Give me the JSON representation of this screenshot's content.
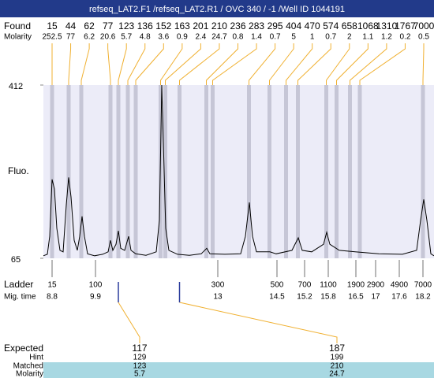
{
  "chart_data": {
    "type": "line",
    "title": "refseq_LAT2.F1 /refseq_LAT2.R1 / OVC 340 / -1 /Well ID 1044191",
    "y_label": "Fluo.",
    "xlim": [
      8.58,
      18.48
    ],
    "ylim": [
      65,
      412
    ],
    "yticks": [
      65,
      412
    ],
    "x": [
      8.58,
      8.68,
      8.74,
      8.8,
      8.86,
      8.92,
      9.0,
      9.08,
      9.16,
      9.22,
      9.28,
      9.36,
      9.44,
      9.5,
      9.56,
      9.62,
      9.7,
      9.88,
      10.08,
      10.22,
      10.28,
      10.34,
      10.42,
      10.48,
      10.54,
      10.64,
      10.74,
      10.8,
      10.92,
      11.18,
      11.44,
      11.52,
      11.58,
      11.62,
      11.68,
      11.76,
      11.98,
      12.28,
      12.58,
      12.72,
      12.8,
      13.18,
      13.58,
      13.7,
      13.8,
      13.88,
      13.98,
      14.32,
      14.48,
      14.88,
      15.04,
      15.14,
      15.38,
      15.68,
      15.76,
      15.84,
      16.08,
      16.48,
      17.08,
      17.68,
      18.04,
      18.14,
      18.22,
      18.3,
      18.4,
      18.48
    ],
    "series": [
      {
        "color": "#000000",
        "values": [
          70,
          73,
          109,
          223,
          204,
          125,
          81,
          78,
          172,
          227,
          188,
          101,
          81,
          109,
          149,
          109,
          74,
          70,
          73,
          78,
          101,
          81,
          93,
          120,
          85,
          81,
          109,
          81,
          74,
          71,
          78,
          141,
          412,
          298,
          125,
          81,
          73,
          71,
          74,
          85,
          74,
          73,
          74,
          109,
          177,
          109,
          78,
          78,
          74,
          81,
          106,
          81,
          78,
          93,
          117,
          93,
          81,
          78,
          74,
          73,
          81,
          141,
          183,
          141,
          74,
          70
        ]
      }
    ],
    "found": {
      "label": "Found",
      "molarity_label": "Molarity",
      "sizes": [
        15,
        44,
        62,
        77,
        123,
        136,
        152,
        163,
        201,
        210,
        236,
        283,
        295,
        404,
        470,
        574,
        658,
        1068,
        1310,
        1767,
        7000
      ],
      "molarities": [
        252.5,
        77,
        6.2,
        20.6,
        5.7,
        4.8,
        3.6,
        0.9,
        2.4,
        24.7,
        0.8,
        1.4,
        0.7,
        5,
        1,
        0.7,
        2,
        1.1,
        1.2,
        0.2,
        0.5
      ],
      "times": [
        8.8,
        9.22,
        9.54,
        10.28,
        10.48,
        10.72,
        10.92,
        11.55,
        11.67,
        12.03,
        12.71,
        12.87,
        13.79,
        14.31,
        14.73,
        15.03,
        15.75,
        16.01,
        16.35,
        16.6,
        18.2
      ]
    },
    "ladder": {
      "label": "Ladder",
      "time_label": "Mig. time",
      "sizes": [
        15,
        100,
        300,
        500,
        700,
        1100,
        1900,
        2900,
        4900,
        7000
      ],
      "times": [
        8.8,
        9.9,
        13,
        14.5,
        15.2,
        15.8,
        16.5,
        17,
        17.6,
        18.2
      ]
    },
    "expected": {
      "labels": [
        "Expected",
        "Hint",
        "Matched",
        "Molarity"
      ],
      "columns": [
        [
          "117",
          "129",
          "123",
          "5.7"
        ],
        [
          "187",
          "199",
          "210",
          "24.7"
        ]
      ]
    }
  }
}
